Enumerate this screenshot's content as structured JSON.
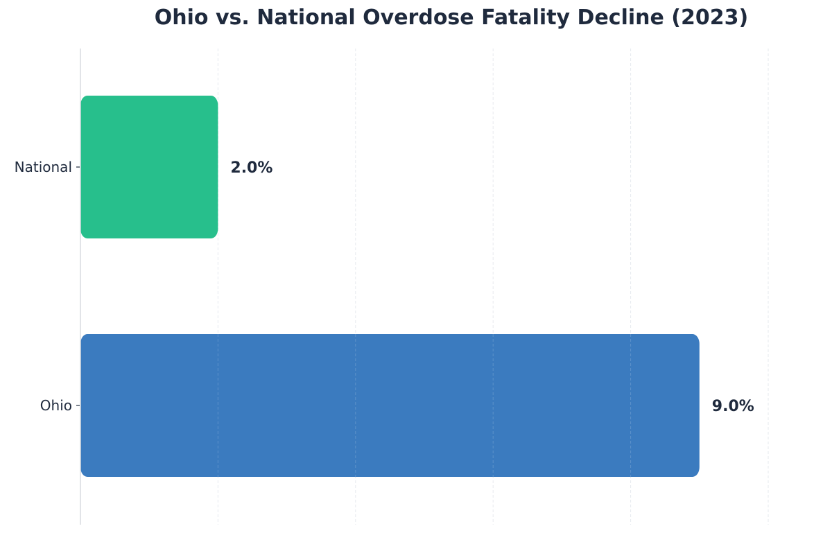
{
  "chart_data": {
    "type": "bar",
    "orientation": "horizontal",
    "title": "Ohio vs. National Overdose Fatality Decline (2023)",
    "categories": [
      "National",
      "Ohio"
    ],
    "values": [
      2.0,
      9.0
    ],
    "value_labels": [
      "2.0%",
      "9.0%"
    ],
    "bar_colors": [
      "#27BF8C",
      "#3B7BBF"
    ],
    "xlim": [
      0,
      10
    ],
    "xticks": [
      0,
      2,
      4,
      6,
      8,
      10
    ],
    "xlabel": "",
    "ylabel": "",
    "grid": "vertical dashed",
    "legend": "none"
  },
  "colors": {
    "text": "#1F2A3D",
    "grid": "#E6E9EE",
    "axis": "#D9DCE1"
  }
}
